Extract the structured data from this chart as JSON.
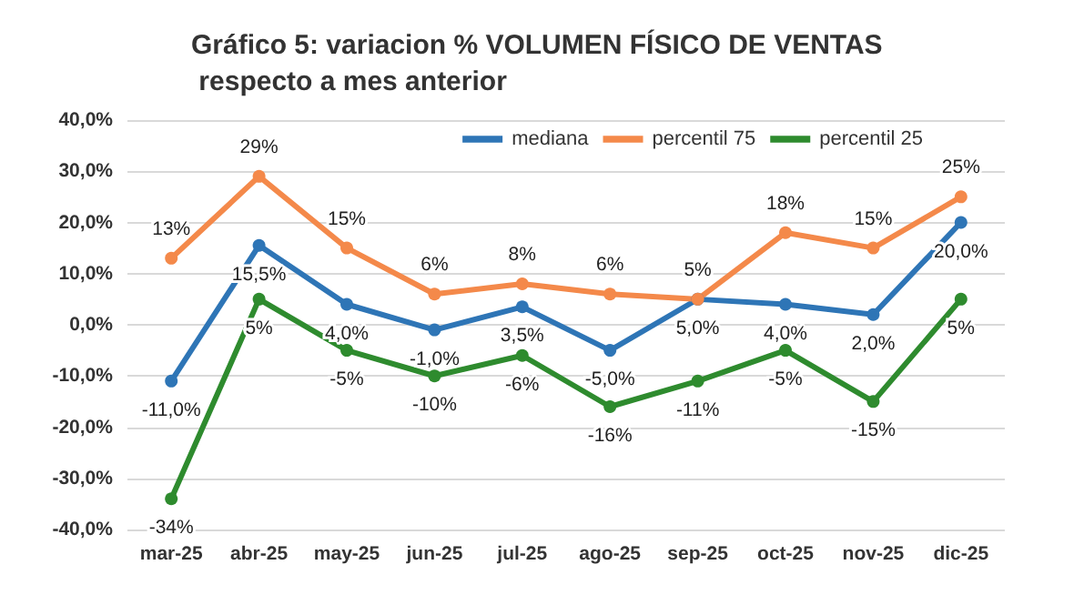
{
  "chart_data": {
    "type": "line",
    "title": "Gráfico 5: variacion % VOLUMEN FÍSICO DE VENTAS respecto a mes anterior",
    "categories": [
      "mar-25",
      "abr-25",
      "may-25",
      "jun-25",
      "jul-25",
      "ago-25",
      "sep-25",
      "oct-25",
      "nov-25",
      "dic-25"
    ],
    "series": [
      {
        "name": "mediana",
        "color": "#2e75b6",
        "values": [
          -11.0,
          15.5,
          4.0,
          -1.0,
          3.5,
          -5.0,
          5.0,
          4.0,
          2.0,
          20.0
        ],
        "value_labels": [
          "-11,0%",
          "15,5%",
          "4,0%",
          "-1,0%",
          "3,5%",
          "-5,0%",
          "5,0%",
          "4,0%",
          "2,0%",
          "20,0%"
        ]
      },
      {
        "name": "percentil 75",
        "color": "#f4894a",
        "values": [
          13,
          29,
          15,
          6,
          8,
          6,
          5,
          18,
          15,
          25
        ],
        "value_labels": [
          "13%",
          "29%",
          "15%",
          "6%",
          "8%",
          "6%",
          "5%",
          "18%",
          "15%",
          "25%"
        ]
      },
      {
        "name": "percentil 25",
        "color": "#2e8b2e",
        "values": [
          -34,
          5,
          -5,
          -10,
          -6,
          -16,
          -11,
          -5,
          -15,
          5
        ],
        "value_labels": [
          "-34%",
          "5%",
          "-5%",
          "-10%",
          "-6%",
          "-16%",
          "-11%",
          "-5%",
          "-15%",
          "5%"
        ]
      }
    ],
    "ylim": [
      -40,
      40
    ],
    "yticks": [
      {
        "value": -40,
        "label": "-40,0%"
      },
      {
        "value": -30,
        "label": "-30,0%"
      },
      {
        "value": -20,
        "label": "-20,0%"
      },
      {
        "value": -10,
        "label": "-10,0%"
      },
      {
        "value": 0,
        "label": "0,0%"
      },
      {
        "value": 10,
        "label": "10,0%"
      },
      {
        "value": 20,
        "label": "20,0%"
      },
      {
        "value": 30,
        "label": "30,0%"
      },
      {
        "value": 40,
        "label": "40,0%"
      }
    ],
    "grid": "y",
    "legend": "top right",
    "marker": "circle",
    "line_style": "solid"
  }
}
